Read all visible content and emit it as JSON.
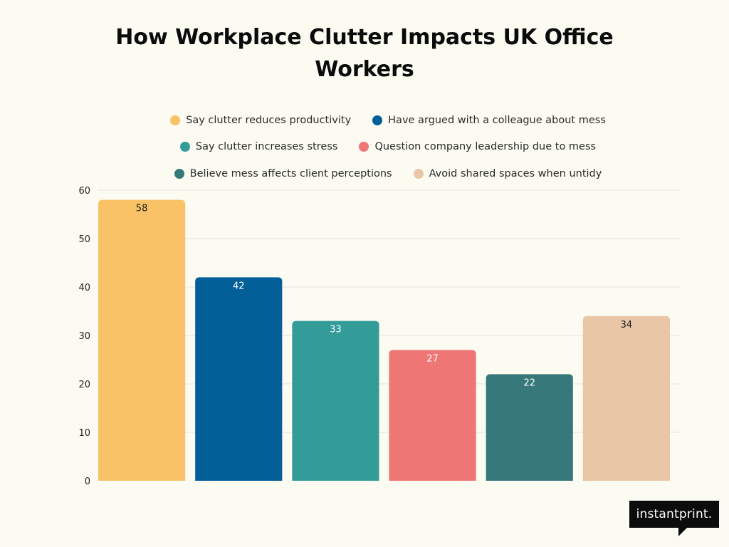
{
  "chart_data": {
    "type": "bar",
    "title": "How Workplace Clutter Impacts UK Office Workers",
    "xlabel": "",
    "ylabel": "",
    "ylim": [
      0,
      60
    ],
    "yticks": [
      0,
      10,
      20,
      30,
      40,
      50,
      60
    ],
    "grid": true,
    "legend_position": "top",
    "categories": [
      "Say clutter reduces productivity",
      "Have argued with a colleague about mess",
      "Say clutter increases stress",
      "Question company leadership due to mess",
      "Believe mess affects client perceptions",
      "Avoid shared spaces when untidy"
    ],
    "values": [
      58,
      42,
      33,
      27,
      22,
      34
    ],
    "colors": [
      "#f9c267",
      "#025f98",
      "#339c98",
      "#ee7674",
      "#37797b",
      "#e9c7a6"
    ],
    "label_colors": [
      "#1a1a1a",
      "#ffffff",
      "#ffffff",
      "#ffffff",
      "#ffffff",
      "#1a1a1a"
    ]
  },
  "legend_rows": [
    [
      0,
      1
    ],
    [
      2,
      3
    ],
    [
      4,
      5
    ]
  ],
  "logo": {
    "text": "instantprint."
  }
}
